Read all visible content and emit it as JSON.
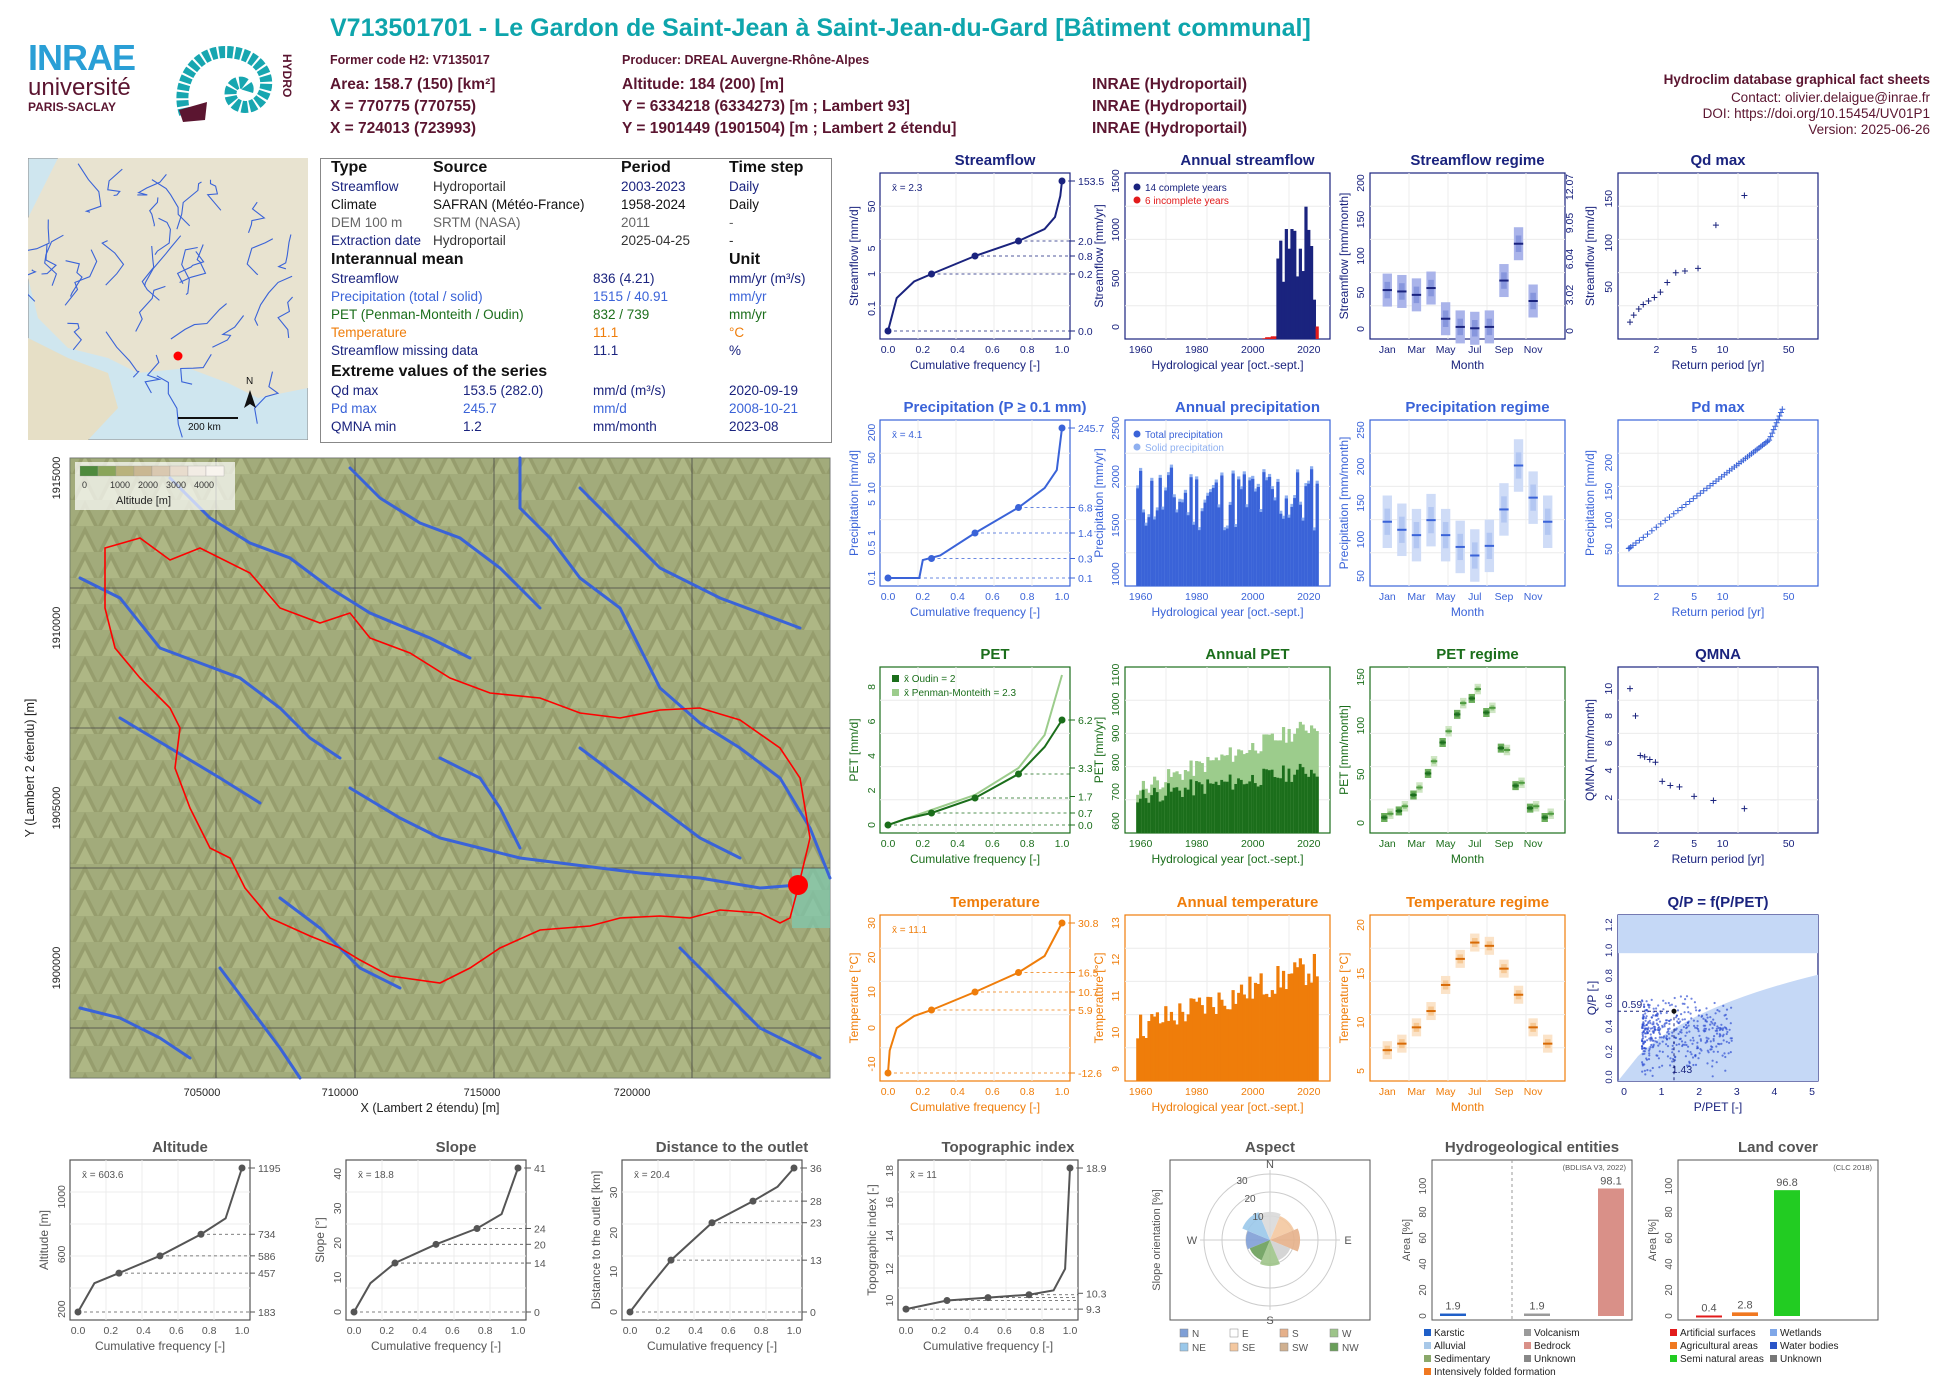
{
  "header": {
    "title": "V713501701 - Le Gardon de Saint-Jean à Saint-Jean-du-Gard [Bâtiment communal]",
    "former_code": "Former code H2: V7135017",
    "producer": "Producer: DREAL Auvergne-Rhône-Alpes",
    "area": "Area: 158.7 (150) [km²]",
    "altitude": "Altitude: 184 (200) [m]",
    "x93": "X = 770775 (770755)",
    "y93": "Y = 6334218 (6334273) [m ; Lambert 93]",
    "x2e": "X = 724013 (723993)",
    "y2e": "Y = 1901449 (1901504) [m ; Lambert 2 étendu]",
    "src1": "INRAE (Hydroportail)",
    "src2": "INRAE (Hydroportail)",
    "src3": "INRAE (Hydroportail)",
    "db": "Hydroclim database graphical fact sheets",
    "contact": "Contact: olivier.delaigue@inrae.fr",
    "doi": "DOI: https://doi.org/10.15454/UV01P1",
    "version": "Version: 2025-06-26",
    "logo_inrae": "INRAE",
    "logo_univ": "université",
    "logo_ps": "PARIS-SACLAY",
    "logo_hydro": "HYDRO"
  },
  "locator_map": {
    "north": "N",
    "scale": "200 km"
  },
  "info_table": {
    "headers": [
      "Type",
      "Source",
      "Period",
      "Time step"
    ],
    "rows": [
      [
        "Streamflow",
        "Hydroportail",
        "2003-2023",
        "Daily"
      ],
      [
        "Climate",
        "SAFRAN (Météo-France)",
        "1958-2024",
        "Daily"
      ],
      [
        "DEM 100 m",
        "SRTM (NASA)",
        "2011",
        "-"
      ],
      [
        "Extraction date",
        "Hydroportail",
        "2025-04-25",
        "-"
      ]
    ],
    "mean_title": "Interannual mean",
    "unit_title": "Unit",
    "means": [
      [
        "Streamflow",
        "836 (4.21)",
        "mm/yr (m³/s)"
      ],
      [
        "Precipitation (total / solid)",
        "1515 / 40.91",
        "mm/yr"
      ],
      [
        "PET (Penman-Monteith / Oudin)",
        "832 / 739",
        "mm/yr"
      ],
      [
        "Temperature",
        "11.1",
        "°C"
      ],
      [
        "Streamflow missing data",
        "11.1",
        "%"
      ]
    ],
    "extreme_title": "Extreme values of the series",
    "extremes": [
      [
        "Qd max",
        "153.5 (282.0)",
        "mm/d (m³/s)",
        "2020-09-19"
      ],
      [
        "Pd max",
        "245.7",
        "mm/d",
        "2008-10-21"
      ],
      [
        "QMNA min",
        "1.2",
        "mm/month",
        "2023-08"
      ]
    ]
  },
  "main_map": {
    "xlabel": "X (Lambert 2 étendu) [m]",
    "ylabel": "Y (Lambert 2 étendu) [m]",
    "xticks": [
      "705000",
      "710000",
      "715000",
      "720000"
    ],
    "yticks": [
      "1915000",
      "1910000",
      "1905000",
      "1900000"
    ],
    "legend_ticks": [
      "0",
      "1000",
      "2000",
      "3000",
      "4000"
    ],
    "legend_title": "Altitude [m]"
  },
  "colors": {
    "streamflow": "#1a237e",
    "precip": "#3a63d8",
    "precip_light": "#8fb0f0",
    "pet": "#1b6e1b",
    "pet_light": "#9ccc8c",
    "temp": "#ef7d0a",
    "title_teal": "#0ea5ac",
    "header_text": "#5b1530",
    "grey": "#555555",
    "red": "#ff0000"
  },
  "chart_data": [
    {
      "id": "streamflow_fdc",
      "type": "line",
      "title": "Streamflow",
      "xlabel": "Cumulative frequency [-]",
      "ylabel": "Streamflow [mm/d]",
      "mean_label": "x̄ = 2.3",
      "right_ticks": [
        "153.5",
        "2.0",
        "0.8",
        "0.2",
        "0.0"
      ],
      "left_ticks": [
        "50",
        "5",
        "1",
        "0.1"
      ],
      "xticks": [
        "0.0",
        "0.2",
        "0.4",
        "0.6",
        "0.8",
        "1.0"
      ]
    },
    {
      "id": "annual_streamflow",
      "type": "bar",
      "title": "Annual streamflow",
      "xlabel": "Hydrological year [oct.-sept.]",
      "ylabel": "Streamflow [mm/yr]",
      "legend": [
        "14 complete years",
        "6 incomplete years"
      ],
      "xticks": [
        "1960",
        "1980",
        "2000",
        "2020"
      ],
      "yticks": [
        "0",
        "500",
        "1000",
        "1500"
      ],
      "x": [
        2004,
        2005,
        2006,
        2007,
        2008,
        2009,
        2010,
        2011,
        2012,
        2013,
        2014,
        2015,
        2016,
        2017,
        2018,
        2019,
        2020,
        2021,
        2022,
        2023
      ],
      "values": [
        0,
        20,
        20,
        30,
        30,
        900,
        1100,
        640,
        1230,
        1010,
        1230,
        1210,
        700,
        1010,
        760,
        1480,
        1220,
        1040,
        440,
        140
      ],
      "complete": [
        false,
        false,
        false,
        false,
        false,
        true,
        true,
        true,
        true,
        true,
        true,
        true,
        true,
        true,
        true,
        true,
        true,
        true,
        true,
        false
      ]
    },
    {
      "id": "streamflow_regime",
      "type": "box",
      "title": "Streamflow regime",
      "xlabel": "Month",
      "ylabel": "Streamflow [mm/month]",
      "right_ticks": [
        "12.07",
        "9.05",
        "6.04",
        "3.02",
        "0"
      ],
      "yticks": [
        "0",
        "50",
        "100",
        "150",
        "200"
      ],
      "xticks": [
        "Jan",
        "Mar",
        "May",
        "Jul",
        "Sep",
        "Nov"
      ],
      "median": [
        60,
        58,
        53,
        63,
        18,
        6,
        4,
        6,
        74,
        128,
        44,
        0
      ]
    },
    {
      "id": "qd_max",
      "type": "scatter",
      "title": "Qd max",
      "xlabel": "Return period [yr]",
      "ylabel": "Streamflow [mm/d]",
      "yticks": [
        "50",
        "100",
        "150"
      ],
      "xticks": [
        "2",
        "5",
        "10",
        "50"
      ],
      "x": [
        1.05,
        1.15,
        1.3,
        1.45,
        1.65,
        1.9,
        2.2,
        2.6,
        3.2,
        4.0,
        5.5,
        8.5,
        17
      ],
      "values": [
        10,
        18,
        25,
        30,
        34,
        38,
        44,
        55,
        66,
        68,
        71,
        120,
        153.5
      ]
    },
    {
      "id": "precip_fdc",
      "type": "line",
      "title": "Precipitation (P ≥ 0.1 mm)",
      "xlabel": "Cumulative frequency [-]",
      "ylabel": "Precipitation [mm/d]",
      "mean_label": "x̄ = 4.1",
      "right_ticks": [
        "245.7",
        "6.8",
        "1.4",
        "0.3",
        "0.1"
      ],
      "left_ticks": [
        "200",
        "50",
        "10",
        "5",
        "1",
        "0.5",
        "0.1"
      ],
      "xticks": [
        "0.0",
        "0.2",
        "0.4",
        "0.6",
        "0.8",
        "1.0"
      ]
    },
    {
      "id": "annual_precip",
      "type": "bar",
      "title": "Annual precipitation",
      "xlabel": "Hydrological year [oct.-sept.]",
      "ylabel": "Precipitation [mm/yr]",
      "legend": [
        "Total precipitation",
        "Solid precipitation"
      ],
      "xticks": [
        "1960",
        "1980",
        "2000",
        "2020"
      ],
      "yticks": [
        "1000",
        "1500",
        "2000",
        "2500"
      ]
    },
    {
      "id": "precip_regime",
      "type": "box",
      "title": "Precipitation regime",
      "xlabel": "Month",
      "ylabel": "Precipitation [mm/month]",
      "yticks": [
        "50",
        "100",
        "150",
        "200",
        "250"
      ],
      "xticks": [
        "Jan",
        "Mar",
        "May",
        "Jul",
        "Sep",
        "Nov"
      ],
      "median": [
        105,
        90,
        80,
        108,
        80,
        58,
        42,
        60,
        128,
        210,
        150,
        105
      ]
    },
    {
      "id": "pd_max",
      "type": "scatter",
      "title": "Pd max",
      "xlabel": "Return period [yr]",
      "ylabel": "Precipitation [mm/d]",
      "yticks": [
        "50",
        "100",
        "150",
        "200"
      ],
      "xticks": [
        "2",
        "5",
        "10",
        "50"
      ]
    },
    {
      "id": "pet_fdc",
      "type": "line",
      "title": "PET",
      "xlabel": "Cumulative frequency [-]",
      "ylabel": "PET [mm/d]",
      "legend": [
        "x̄ Oudin = 2",
        "x̄ Penman-Monteith = 2.3"
      ],
      "right_ticks": [
        "6.2",
        "3.3",
        "1.7",
        "0.7",
        "0.0"
      ],
      "left_ticks": [
        "0",
        "2",
        "4",
        "6",
        "8"
      ],
      "xticks": [
        "0.0",
        "0.2",
        "0.4",
        "0.6",
        "0.8",
        "1.0"
      ]
    },
    {
      "id": "annual_pet",
      "type": "bar",
      "title": "Annual PET",
      "xlabel": "Hydrological year [oct.-sept.]",
      "ylabel": "PET [mm/yr]",
      "xticks": [
        "1960",
        "1980",
        "2000",
        "2020"
      ],
      "yticks": [
        "600",
        "700",
        "800",
        "900",
        "1000",
        "1100"
      ]
    },
    {
      "id": "pet_regime",
      "type": "box",
      "title": "PET regime",
      "xlabel": "Month",
      "ylabel": "PET [mm/month]",
      "yticks": [
        "0",
        "50",
        "100",
        "150"
      ],
      "xticks": [
        "Jan",
        "Mar",
        "May",
        "Jul",
        "Sep",
        "Nov"
      ],
      "oudin": [
        8,
        15,
        32,
        55,
        88,
        118,
        135,
        120,
        82,
        42,
        18,
        8
      ],
      "penman": [
        12,
        20,
        40,
        68,
        100,
        130,
        145,
        125,
        80,
        45,
        20,
        12
      ]
    },
    {
      "id": "qmna",
      "type": "scatter",
      "title": "QMNA",
      "xlabel": "Return period [yr]",
      "ylabel": "QMNA [mm/month]",
      "yticks": [
        "2",
        "4",
        "6",
        "8",
        "10"
      ],
      "xticks": [
        "2",
        "5",
        "10",
        "50"
      ],
      "x": [
        1.05,
        1.2,
        1.35,
        1.5,
        1.7,
        1.95,
        2.3,
        2.8,
        3.5,
        5.0,
        8.0,
        17
      ],
      "values": [
        10.0,
        8.0,
        5.1,
        5.0,
        4.8,
        4.6,
        3.2,
        2.9,
        2.8,
        2.1,
        1.8,
        1.2
      ]
    },
    {
      "id": "temp_fdc",
      "type": "line",
      "title": "Temperature",
      "xlabel": "Cumulative frequency [-]",
      "ylabel": "Temperature [°C]",
      "mean_label": "x̄ = 11.1",
      "right_ticks": [
        "30.8",
        "16.5",
        "10.7",
        "5.9",
        "-12.6"
      ],
      "left_ticks": [
        "-10",
        "0",
        "10",
        "20",
        "30"
      ],
      "xticks": [
        "0.0",
        "0.2",
        "0.4",
        "0.6",
        "0.8",
        "1.0"
      ]
    },
    {
      "id": "annual_temp",
      "type": "bar",
      "title": "Annual temperature",
      "xlabel": "Hydrological year [oct.-sept.]",
      "ylabel": "Temperature [°C]",
      "xticks": [
        "1960",
        "1980",
        "2000",
        "2020"
      ],
      "yticks": [
        "9",
        "10",
        "11",
        "12",
        "13"
      ]
    },
    {
      "id": "temp_regime",
      "type": "box",
      "title": "Temperature regime",
      "xlabel": "Month",
      "ylabel": "Temperature [°C]",
      "yticks": [
        "5",
        "10",
        "15",
        "20"
      ],
      "xticks": [
        "Jan",
        "Mar",
        "May",
        "Jul",
        "Sep",
        "Nov"
      ],
      "median": [
        3.5,
        4.5,
        7.0,
        9.5,
        13.5,
        17.5,
        20.0,
        19.5,
        16.0,
        12.0,
        7.0,
        4.5
      ]
    },
    {
      "id": "qp_budyko",
      "type": "scatter",
      "title": "Q/P = f(P/PET)",
      "xlabel": "P/PET [-]",
      "ylabel": "Q/P [-]",
      "annotations": [
        "0.59",
        "1.43"
      ],
      "xticks": [
        "0",
        "1",
        "2",
        "3",
        "4",
        "5"
      ],
      "yticks": [
        "0.0",
        "0.2",
        "0.4",
        "0.6",
        "0.8",
        "1.0",
        "1.2"
      ]
    },
    {
      "id": "altitude",
      "type": "line",
      "title": "Altitude",
      "xlabel": "Cumulative frequency [-]",
      "ylabel": "Altitude [m]",
      "mean_label": "x̄ = 603.6",
      "right_ticks": [
        "1195",
        "734",
        "586",
        "457",
        "183"
      ],
      "left_ticks": [
        "200",
        "600",
        "1000"
      ],
      "xticks": [
        "0.0",
        "0.2",
        "0.4",
        "0.6",
        "0.8",
        "1.0"
      ]
    },
    {
      "id": "slope",
      "type": "line",
      "title": "Slope",
      "xlabel": "Cumulative frequency [-]",
      "ylabel": "Slope [°]",
      "mean_label": "x̄ = 18.8",
      "right_ticks": [
        "41",
        "24",
        "20",
        "14",
        "0"
      ],
      "left_ticks": [
        "0",
        "10",
        "20",
        "30",
        "40"
      ],
      "xticks": [
        "0.0",
        "0.2",
        "0.4",
        "0.6",
        "0.8",
        "1.0"
      ]
    },
    {
      "id": "distance",
      "type": "line",
      "title": "Distance to the outlet",
      "xlabel": "Cumulative frequency [-]",
      "ylabel": "Distance to the outlet [km]",
      "mean_label": "x̄ = 20.4",
      "right_ticks": [
        "36",
        "28",
        "23",
        "13",
        "0"
      ],
      "left_ticks": [
        "0",
        "10",
        "20",
        "30"
      ],
      "xticks": [
        "0.0",
        "0.2",
        "0.4",
        "0.6",
        "0.8",
        "1.0"
      ]
    },
    {
      "id": "topo_index",
      "type": "line",
      "title": "Topographic index",
      "xlabel": "Cumulative frequency [-]",
      "ylabel": "Topographic index [-]",
      "mean_label": "x̄ = 11",
      "right_ticks": [
        "18.9",
        "10.3",
        "9.3"
      ],
      "left_ticks": [
        "10",
        "12",
        "14",
        "16",
        "18"
      ],
      "xticks": [
        "0.0",
        "0.2",
        "0.4",
        "0.6",
        "0.8",
        "1.0"
      ]
    },
    {
      "id": "aspect",
      "type": "pie",
      "title": "Aspect",
      "ylabel": "Slope orientation [%]",
      "labels": [
        "N",
        "E",
        "S",
        "W"
      ],
      "rings": [
        "10",
        "20",
        "30"
      ],
      "legend": [
        "N",
        "E",
        "S",
        "W",
        "NE",
        "SE",
        "SW",
        "NW"
      ]
    },
    {
      "id": "hydrogeo",
      "type": "bar",
      "title": "Hydrogeological entities",
      "ylabel": "Area [%]",
      "note": "(BDLISA V3, 2022)",
      "values": [
        1.9,
        1.9,
        98.1
      ],
      "value_labels": [
        "1.9",
        "1.9",
        "98.1"
      ],
      "yticks": [
        "0",
        "20",
        "40",
        "60",
        "80",
        "100"
      ],
      "legend": [
        "Karstic",
        "Volcanism",
        "Alluvial",
        "Bedrock",
        "Sedimentary",
        "Unknown",
        "Intensively folded formation"
      ]
    },
    {
      "id": "landcover",
      "type": "bar",
      "title": "Land cover",
      "ylabel": "Area [%]",
      "note": "(CLC 2018)",
      "values": [
        0.4,
        2.8,
        96.8
      ],
      "value_labels": [
        "0.4",
        "2.8",
        "96.8"
      ],
      "yticks": [
        "0",
        "20",
        "40",
        "60",
        "80",
        "100"
      ],
      "legend": [
        "Artificial surfaces",
        "Wetlands",
        "Agricultural areas",
        "Water bodies",
        "Semi natural areas",
        "Unknown"
      ]
    }
  ]
}
